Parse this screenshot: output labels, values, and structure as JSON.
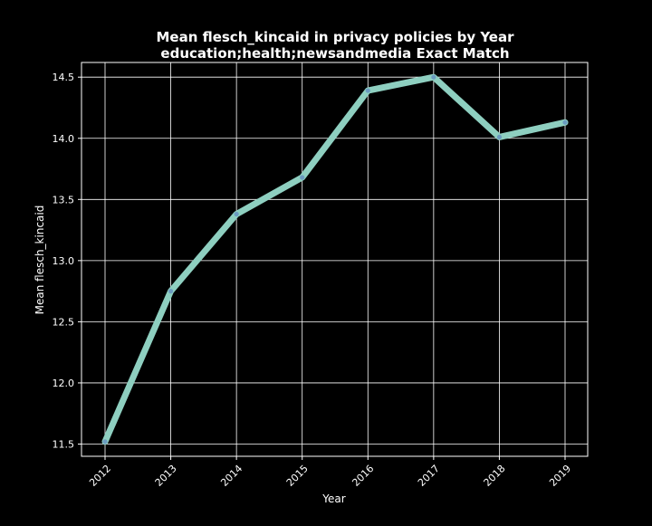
{
  "chart_data": {
    "type": "line",
    "title": "Mean flesch_kincaid in privacy policies by Year",
    "subtitle": "education;health;newsandmedia Exact Match",
    "xlabel": "Year",
    "ylabel": "Mean flesch_kincaid",
    "x": [
      "2012",
      "2013",
      "2014",
      "2015",
      "2016",
      "2017",
      "2018",
      "2019"
    ],
    "series": [
      {
        "values": [
          11.52,
          12.75,
          13.38,
          13.68,
          14.39,
          14.5,
          14.01,
          14.13
        ]
      }
    ],
    "ylim": [
      11.4,
      14.62
    ],
    "yticks": [
      "11.5",
      "12.0",
      "12.5",
      "13.0",
      "13.5",
      "14.0",
      "14.5"
    ],
    "grid": true,
    "colors": {
      "line": "#8ecfc0",
      "marker": "#6b9bc0",
      "background": "#000000",
      "grid": "#ffffff",
      "text": "#ffffff"
    }
  }
}
